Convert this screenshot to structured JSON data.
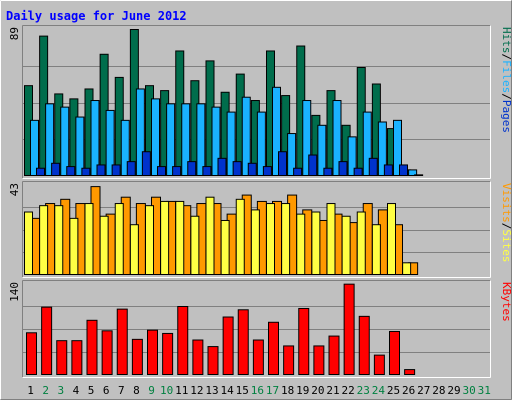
{
  "chart_data": {
    "type": "bar",
    "title": "Daily usage for June 2012",
    "days": [
      "1",
      "2",
      "3",
      "4",
      "5",
      "6",
      "7",
      "8",
      "9",
      "10",
      "11",
      "12",
      "13",
      "14",
      "15",
      "16",
      "17",
      "18",
      "19",
      "20",
      "21",
      "22",
      "23",
      "24",
      "25",
      "26",
      "27",
      "28",
      "29",
      "30",
      "31"
    ],
    "weekend_days": [
      "2",
      "3",
      "9",
      "10",
      "16",
      "17",
      "23",
      "24",
      "30",
      "31"
    ],
    "panels": [
      {
        "id": "hits",
        "axis_max": 89,
        "axis_label": "89",
        "side_labels": [
          "Pages",
          "Files",
          "Hits"
        ],
        "series": [
          {
            "name": "Hits",
            "color": "#006d4c",
            "values": [
              55,
              85,
              50,
              47,
              53,
              74,
              60,
              89,
              55,
              52,
              76,
              58,
              70,
              51,
              62,
              46,
              76,
              49,
              79,
              37,
              52,
              31,
              66,
              56,
              29,
              4,
              0,
              0,
              0,
              0,
              0
            ]
          },
          {
            "name": "Files",
            "color": "#1ab2ff",
            "values": [
              34,
              44,
              42,
              36,
              46,
              40,
              34,
              53,
              47,
              44,
              44,
              44,
              42,
              39,
              48,
              39,
              54,
              26,
              46,
              31,
              46,
              24,
              39,
              33,
              34,
              4,
              0,
              0,
              0,
              0,
              0
            ]
          },
          {
            "name": "Pages",
            "color": "#0033cc",
            "values": [
              5,
              8,
              6,
              5,
              7,
              7,
              9,
              15,
              6,
              6,
              9,
              6,
              11,
              9,
              8,
              6,
              15,
              5,
              13,
              5,
              9,
              5,
              11,
              7,
              7,
              1,
              0,
              0,
              0,
              0,
              0
            ]
          }
        ]
      },
      {
        "id": "visits",
        "axis_max": 43,
        "axis_label": "43",
        "side_labels": [
          "Sites",
          "Visits"
        ],
        "series": [
          {
            "name": "Visits",
            "color": "#ff9900",
            "values": [
              27,
              34,
              36,
              34,
              42,
              29,
              37,
              34,
              37,
              35,
              33,
              34,
              34,
              29,
              38,
              35,
              35,
              38,
              31,
              26,
              29,
              25,
              34,
              31,
              24,
              6,
              0,
              0,
              0,
              0,
              0
            ]
          },
          {
            "name": "Sites",
            "color": "#ffff44",
            "values": [
              30,
              33,
              33,
              27,
              34,
              28,
              34,
              24,
              33,
              35,
              35,
              28,
              37,
              26,
              36,
              31,
              34,
              34,
              29,
              30,
              34,
              28,
              30,
              24,
              34,
              6,
              0,
              0,
              0,
              0,
              0
            ]
          }
        ]
      },
      {
        "id": "kbytes",
        "axis_max": 140,
        "axis_label": "140",
        "side_labels": [
          "KBytes"
        ],
        "series": [
          {
            "name": "KBytes",
            "color": "#ff0000",
            "values": [
              65,
              104,
              53,
              53,
              84,
              68,
              101,
              55,
              69,
              64,
              105,
              54,
              44,
              89,
              100,
              54,
              81,
              45,
              102,
              45,
              60,
              139,
              90,
              31,
              67,
              9,
              0,
              0,
              0,
              0,
              0
            ]
          }
        ]
      }
    ],
    "colors": {
      "background": "#c0c0c0",
      "frame_light": "#ffffff",
      "frame_dark": "#808080",
      "title": "#0000ff",
      "weekday_label": "#000000",
      "weekend_label": "#008040",
      "gridline": "#808080"
    }
  }
}
